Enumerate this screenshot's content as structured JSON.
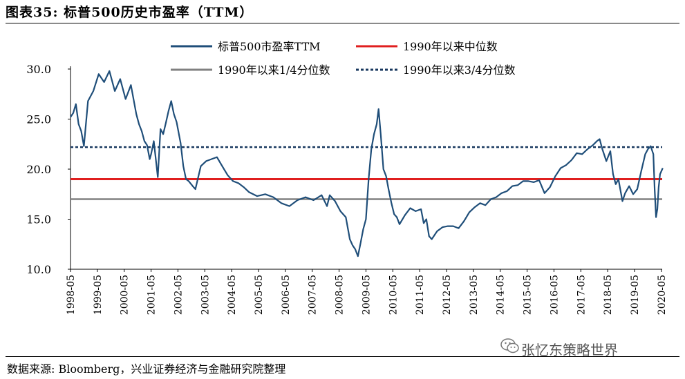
{
  "title": "图表35: 标普500历史市盈率（TTM）",
  "source": "数据来源: Bloomberg，兴业证券经济与金融研究院整理",
  "watermark": "张忆东策略世界",
  "chart_data": {
    "type": "line",
    "title": "图表35: 标普500历史市盈率（TTM）",
    "xlabel": "",
    "ylabel": "",
    "ylim": [
      10,
      30
    ],
    "yticks": [
      "30.0",
      "25.0",
      "20.0",
      "15.0",
      "10.0"
    ],
    "xticks": [
      "1998-05",
      "1999-05",
      "2000-05",
      "2001-05",
      "2002-05",
      "2003-05",
      "2004-05",
      "2005-05",
      "2006-05",
      "2007-05",
      "2008-05",
      "2009-05",
      "2010-05",
      "2011-05",
      "2012-05",
      "2013-05",
      "2014-05",
      "2015-05",
      "2016-05",
      "2017-05",
      "2018-05",
      "2019-05",
      "2020-05"
    ],
    "legend": [
      "标普500市盈率TTM",
      "1990年以来中位数",
      "1990年以来1/4分位数",
      "1990年以来3/4分位数"
    ],
    "legend_position": "top",
    "colors": {
      "pe": "#1F4E79",
      "median": "#E01F1F",
      "q1": "#808080",
      "q3": "#17375E"
    },
    "series": [
      {
        "name": "标普500市盈率TTM",
        "x": [
          1998.35,
          1998.45,
          1998.55,
          1998.65,
          1998.75,
          1998.85,
          1999.0,
          1999.2,
          1999.4,
          1999.6,
          1999.8,
          2000.0,
          2000.2,
          2000.4,
          2000.6,
          2000.8,
          2000.9,
          2001.0,
          2001.1,
          2001.2,
          2001.3,
          2001.35,
          2001.45,
          2001.6,
          2001.7,
          2001.8,
          2001.9,
          2002.0,
          2002.1,
          2002.2,
          2002.3,
          2002.45,
          2002.55,
          2002.65,
          2002.75,
          2002.9,
          2003.0,
          2003.2,
          2003.4,
          2003.6,
          2003.8,
          2004.0,
          2004.2,
          2004.4,
          2004.6,
          2004.8,
          2005.0,
          2005.3,
          2005.6,
          2005.9,
          2006.2,
          2006.5,
          2006.8,
          2007.1,
          2007.4,
          2007.7,
          2007.9,
          2008.0,
          2008.2,
          2008.4,
          2008.6,
          2008.75,
          2008.85,
          2008.95,
          2009.05,
          2009.15,
          2009.25,
          2009.35,
          2009.45,
          2009.55,
          2009.65,
          2009.75,
          2009.82,
          2009.9,
          2010.0,
          2010.1,
          2010.2,
          2010.3,
          2010.4,
          2010.5,
          2010.6,
          2010.8,
          2011.0,
          2011.2,
          2011.4,
          2011.5,
          2011.6,
          2011.7,
          2011.8,
          2012.0,
          2012.2,
          2012.4,
          2012.6,
          2012.8,
          2013.0,
          2013.2,
          2013.4,
          2013.6,
          2013.8,
          2014.0,
          2014.2,
          2014.4,
          2014.6,
          2014.8,
          2015.0,
          2015.2,
          2015.4,
          2015.6,
          2015.8,
          2016.0,
          2016.2,
          2016.4,
          2016.6,
          2016.8,
          2017.0,
          2017.2,
          2017.4,
          2017.6,
          2017.8,
          2017.95,
          2018.05,
          2018.15,
          2018.3,
          2018.45,
          2018.55,
          2018.65,
          2018.75,
          2018.9,
          2019.0,
          2019.15,
          2019.3,
          2019.45,
          2019.6,
          2019.75,
          2019.85,
          2019.95,
          2020.05,
          2020.1,
          2020.15,
          2020.2,
          2020.25,
          2020.3,
          2020.4
        ],
        "values": [
          25.2,
          25.6,
          26.5,
          24.5,
          23.8,
          22.3,
          26.8,
          27.8,
          29.5,
          28.7,
          29.8,
          27.8,
          29.0,
          27.0,
          28.4,
          25.5,
          24.5,
          23.8,
          22.8,
          22.4,
          21.0,
          21.5,
          22.8,
          19.2,
          24.0,
          23.5,
          24.6,
          25.8,
          26.8,
          25.5,
          24.7,
          22.6,
          20.3,
          19.0,
          18.8,
          18.3,
          18.0,
          20.3,
          20.8,
          21.0,
          21.2,
          20.3,
          19.4,
          18.8,
          18.6,
          18.2,
          17.7,
          17.3,
          17.5,
          17.2,
          16.6,
          16.3,
          16.9,
          17.2,
          16.9,
          17.4,
          16.3,
          17.4,
          16.8,
          15.8,
          15.2,
          13.0,
          12.4,
          12.0,
          11.3,
          12.6,
          14.0,
          15.0,
          19.0,
          22.0,
          23.5,
          24.5,
          26.0,
          23.5,
          20.0,
          19.3,
          17.9,
          16.6,
          15.5,
          15.2,
          14.5,
          15.4,
          16.1,
          15.8,
          16.0,
          14.6,
          15.0,
          13.3,
          13.0,
          13.8,
          14.2,
          14.3,
          14.3,
          14.1,
          14.8,
          15.7,
          16.2,
          16.6,
          16.4,
          17.0,
          17.2,
          17.6,
          17.8,
          18.3,
          18.4,
          18.8,
          18.8,
          18.7,
          18.9,
          17.6,
          18.2,
          19.3,
          20.1,
          20.4,
          20.9,
          21.6,
          21.5,
          22.0,
          22.4,
          22.8,
          23.0,
          22.0,
          20.8,
          21.8,
          19.5,
          18.5,
          19.0,
          16.8,
          17.6,
          18.3,
          17.5,
          18.0,
          19.8,
          21.5,
          22.0,
          22.3,
          21.5,
          18.0,
          15.2,
          16.0,
          18.2,
          19.5,
          20.1
        ]
      }
    ],
    "reference_lines": [
      {
        "name": "1990年以来中位数",
        "value": 19.0,
        "style": "solid"
      },
      {
        "name": "1990年以来1/4分位数",
        "value": 17.0,
        "style": "solid"
      },
      {
        "name": "1990年以来3/4分位数",
        "value": 22.2,
        "style": "dashed"
      }
    ],
    "grid": false
  }
}
